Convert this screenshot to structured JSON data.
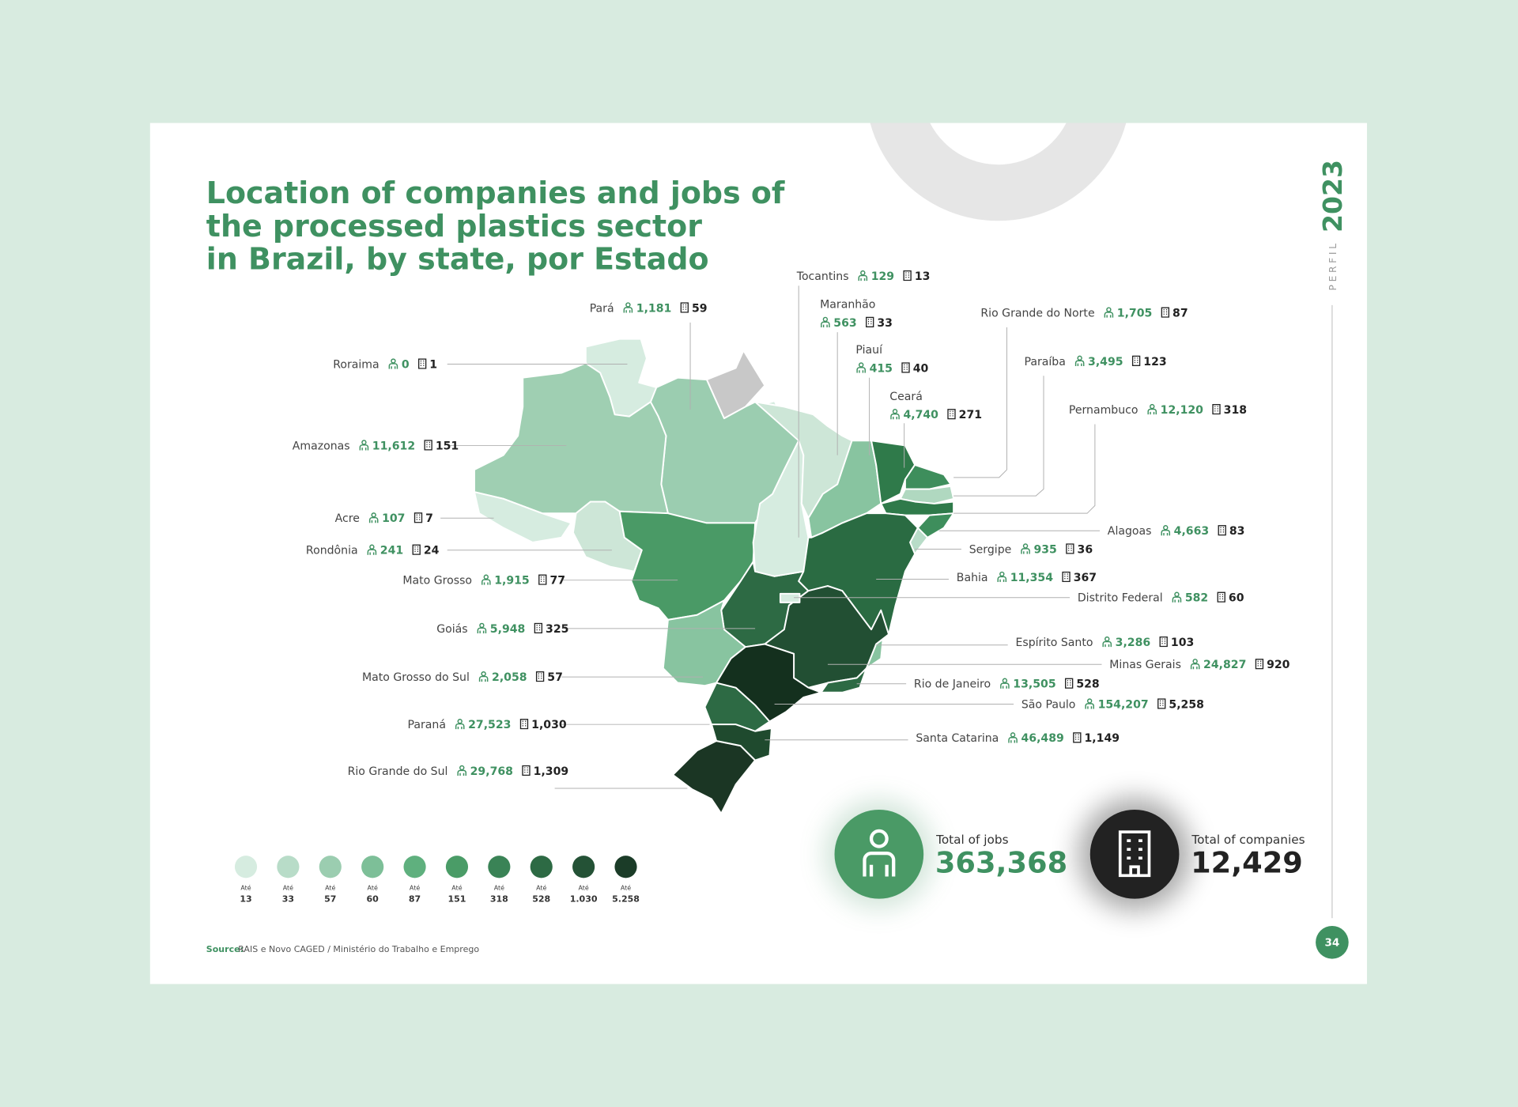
{
  "title_lines": [
    "Location of companies and jobs of",
    "the processed plastics sector",
    "in Brazil, by state, por Estado"
  ],
  "side": {
    "year": "2023",
    "label": "PERFIL"
  },
  "page_number": "34",
  "states": [
    {
      "name": "Pará",
      "jobs": "1,181",
      "companies": "59",
      "color": "#9bcdb0"
    },
    {
      "name": "Roraima",
      "jobs": "0",
      "companies": "1",
      "color": "#d6ece0"
    },
    {
      "name": "Amazonas",
      "jobs": "11,612",
      "companies": "151",
      "color": "#9fcfb2"
    },
    {
      "name": "Acre",
      "jobs": "107",
      "companies": "7",
      "color": "#d6ece0"
    },
    {
      "name": "Rondônia",
      "jobs": "241",
      "companies": "24",
      "color": "#cde6d7"
    },
    {
      "name": "Mato Grosso",
      "jobs": "1,915",
      "companies": "77",
      "color": "#4a9a66"
    },
    {
      "name": "Goiás",
      "jobs": "5,948",
      "companies": "325",
      "color": "#2d6a44"
    },
    {
      "name": "Mato Grosso do Sul",
      "jobs": "2,058",
      "companies": "57",
      "color": "#88c4a0"
    },
    {
      "name": "Paraná",
      "jobs": "27,523",
      "companies": "1,030",
      "color": "#2d6a44"
    },
    {
      "name": "Rio Grande do Sul",
      "jobs": "29,768",
      "companies": "1,309",
      "color": "#1b3624"
    },
    {
      "name": "Tocantins",
      "jobs": "129",
      "companies": "13",
      "color": "#d6ece0"
    },
    {
      "name": "Maranhão",
      "jobs": "563",
      "companies": "33",
      "color": "#cde6d7"
    },
    {
      "name": "Piauí",
      "jobs": "415",
      "companies": "40",
      "color": "#88c4a0"
    },
    {
      "name": "Ceará",
      "jobs": "4,740",
      "companies": "271",
      "color": "#2f7a4a"
    },
    {
      "name": "Rio Grande do Norte",
      "jobs": "1,705",
      "companies": "87",
      "color": "#3e8e5c"
    },
    {
      "name": "Paraíba",
      "jobs": "3,495",
      "companies": "123",
      "color": "#b0d8c0"
    },
    {
      "name": "Pernambuco",
      "jobs": "12,120",
      "companies": "318",
      "color": "#2f7a4a"
    },
    {
      "name": "Alagoas",
      "jobs": "4,663",
      "companies": "83",
      "color": "#3e8e5c"
    },
    {
      "name": "Sergipe",
      "jobs": "935",
      "companies": "36",
      "color": "#b8dcc8"
    },
    {
      "name": "Bahia",
      "jobs": "11,354",
      "companies": "367",
      "color": "#2a6b42"
    },
    {
      "name": "Distrito Federal",
      "jobs": "582",
      "companies": "60",
      "color": "#d6ece0"
    },
    {
      "name": "Espírito Santo",
      "jobs": "3,286",
      "companies": "103",
      "color": "#88c4a0"
    },
    {
      "name": "Minas Gerais",
      "jobs": "24,827",
      "companies": "920",
      "color": "#224f33"
    },
    {
      "name": "Rio de Janeiro",
      "jobs": "13,505",
      "companies": "528",
      "color": "#2d6a44"
    },
    {
      "name": "São Paulo",
      "jobs": "154,207",
      "companies": "5,258",
      "color": "#14301e"
    },
    {
      "name": "Santa Catarina",
      "jobs": "46,489",
      "companies": "1,149",
      "color": "#1f4a2e"
    }
  ],
  "legend": {
    "prefix": "Até",
    "items": [
      {
        "label": "13",
        "color": "#d6ece0"
      },
      {
        "label": "33",
        "color": "#b8dcc8"
      },
      {
        "label": "57",
        "color": "#9bcdb0"
      },
      {
        "label": "60",
        "color": "#7dbf98"
      },
      {
        "label": "87",
        "color": "#5fb07e"
      },
      {
        "label": "151",
        "color": "#4a9c67"
      },
      {
        "label": "318",
        "color": "#3a8356"
      },
      {
        "label": "528",
        "color": "#2d6a44"
      },
      {
        "label": "1.030",
        "color": "#245236"
      },
      {
        "label": "5.258",
        "color": "#1b3c28"
      }
    ]
  },
  "totals": {
    "jobs_label": "Total of jobs",
    "jobs": "363,368",
    "companies_label": "Total of companies",
    "companies": "12,429"
  },
  "source": {
    "label": "Source:",
    "text": "RAIS e Novo CAGED / Ministério do Trabalho e Emprego"
  }
}
